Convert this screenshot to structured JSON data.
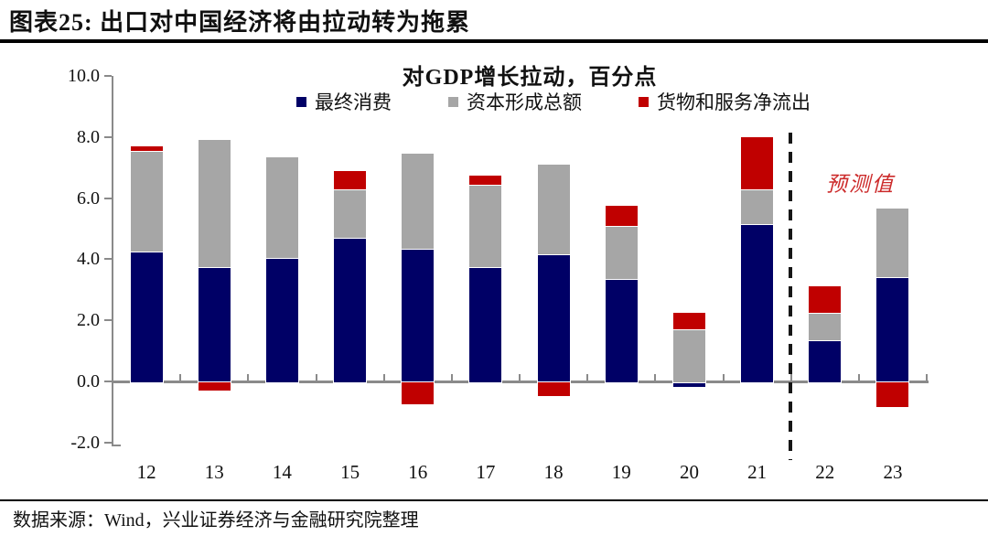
{
  "header": {
    "title": "图表25: 出口对中国经济将由拉动转为拖累"
  },
  "footer": {
    "source": "数据来源：Wind，兴业证券经济与金融研究院整理"
  },
  "chart_data": {
    "type": "bar",
    "subtype": "stacked",
    "title": "对GDP增长拉动，百分点",
    "categories": [
      "12",
      "13",
      "14",
      "15",
      "16",
      "17",
      "18",
      "19",
      "20",
      "21",
      "22",
      "23"
    ],
    "series": [
      {
        "name": "最终消费",
        "color": "#000066",
        "values": [
          4.3,
          3.8,
          4.1,
          4.75,
          4.4,
          3.8,
          4.2,
          3.4,
          -0.15,
          5.2,
          1.4,
          3.45
        ]
      },
      {
        "name": "资本形成总额",
        "color": "#a6a6a6",
        "values": [
          3.3,
          4.15,
          3.3,
          1.6,
          3.1,
          2.7,
          2.95,
          1.75,
          1.75,
          1.15,
          0.9,
          2.25
        ]
      },
      {
        "name": "货物和服务净流出",
        "color": "#c00000",
        "values": [
          0.15,
          -0.25,
          0.0,
          0.6,
          -0.7,
          0.3,
          -0.45,
          0.65,
          0.55,
          1.7,
          0.85,
          -0.8
        ]
      }
    ],
    "ylim": [
      -2.0,
      10.0
    ],
    "y_ticks": [
      "10.0",
      "8.0",
      "6.0",
      "4.0",
      "2.0",
      "0.0",
      "-2.0"
    ],
    "grid": false,
    "legend_position": "top",
    "axis_color": "#8a8a8a",
    "forecast": {
      "label": "预测值",
      "divider_between": [
        "21",
        "22"
      ],
      "label_color": "#cc2a2a"
    }
  }
}
